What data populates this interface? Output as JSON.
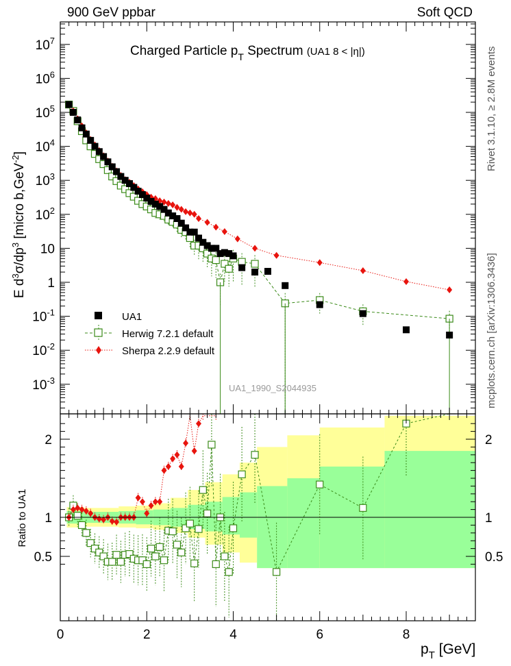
{
  "header": {
    "left": "900 GeV ppbar",
    "right": "Soft QCD"
  },
  "side": {
    "rivet": "Rivet 3.1.10, ≥ 2.8M events",
    "mcplots": "mcplots.cern.ch [arXiv:1306.3436]"
  },
  "chart_data": {
    "type": "scatter",
    "title": "Charged Particle p_T Spectrum  (UA1   8 < |η|)",
    "watermark": "UA1_1990_S2044935",
    "xlabel": "p_T [GeV]",
    "ylabel": "E d³σ/dp³ [micro b,GeV⁻²]",
    "ratio_ylabel": "Ratio to UA1",
    "xlim": [
      0,
      9.6
    ],
    "ylim": [
      0.0002,
      50000000
    ],
    "ratio_ylim": [
      0.35,
      2.3
    ],
    "yscale": "log",
    "xticks": [
      "0",
      "2",
      "4",
      "6",
      "8"
    ],
    "yticks": [
      "10⁻³",
      "10⁻²",
      "10⁻¹",
      "1",
      "10",
      "10²",
      "10³",
      "10⁴",
      "10⁵",
      "10⁶",
      "10⁷"
    ],
    "ratio_yticks": [
      "0.5",
      "1",
      "2"
    ],
    "legend_position": "bottom-left",
    "series": [
      {
        "name": "UA1",
        "color": "#000000",
        "marker": "filled-square",
        "x": [
          0.2,
          0.3,
          0.4,
          0.5,
          0.6,
          0.7,
          0.8,
          0.9,
          1.0,
          1.1,
          1.2,
          1.3,
          1.4,
          1.5,
          1.6,
          1.7,
          1.8,
          1.9,
          2.0,
          2.1,
          2.2,
          2.3,
          2.4,
          2.5,
          2.6,
          2.7,
          2.8,
          2.9,
          3.0,
          3.1,
          3.2,
          3.3,
          3.4,
          3.5,
          3.6,
          3.7,
          3.8,
          3.9,
          4.0,
          4.2,
          4.5,
          4.8,
          5.2,
          6.0,
          7.0,
          8.0,
          9.0
        ],
        "y": [
          170000,
          100000,
          60000,
          35000,
          23000,
          15000,
          10000,
          7000,
          5000,
          3500,
          2500,
          1800,
          1300,
          1000,
          800,
          620,
          480,
          380,
          300,
          240,
          200,
          170,
          140,
          110,
          90,
          75,
          55,
          40,
          30,
          30,
          20,
          15,
          12,
          10,
          10,
          7,
          7.5,
          7,
          6,
          2.7,
          2,
          2.1,
          0.8,
          0.22,
          0.12,
          0.04,
          0.028
        ]
      },
      {
        "name": "Herwig 7.2.1 default",
        "color": "#3a8a18",
        "marker": "open-square",
        "x": [
          0.2,
          0.3,
          0.4,
          0.5,
          0.6,
          0.7,
          0.8,
          0.9,
          1.0,
          1.1,
          1.2,
          1.3,
          1.4,
          1.5,
          1.6,
          1.7,
          1.8,
          1.9,
          2.0,
          2.1,
          2.2,
          2.3,
          2.4,
          2.5,
          2.6,
          2.7,
          2.8,
          2.9,
          3.0,
          3.1,
          3.2,
          3.3,
          3.4,
          3.5,
          3.6,
          3.7,
          3.8,
          3.9,
          4.0,
          4.2,
          4.5,
          5.2,
          6.0,
          7.0,
          9.0
        ],
        "y": [
          170000,
          110000,
          55000,
          28000,
          15000,
          10000,
          6000,
          4200,
          3000,
          2000,
          1300,
          950,
          700,
          550,
          420,
          330,
          250,
          200,
          170,
          140,
          110,
          100,
          90,
          70,
          60,
          50,
          35,
          30,
          20,
          12,
          12,
          10,
          7,
          5,
          4.5,
          1,
          3.5,
          2.5,
          5,
          4,
          3.5,
          0.24,
          0.3,
          0.14,
          0.085
        ],
        "yerr_low": [
          0.05,
          0.05,
          0.05,
          0.05,
          0.05,
          0.05,
          0.05,
          0.05,
          0.08,
          0.08,
          0.1,
          0.12,
          0.12,
          0.15,
          0.15,
          0.2,
          0.2,
          0.2,
          0.25,
          0.25,
          0.3,
          0.3,
          0.3,
          0.35,
          0.35,
          0.4,
          0.4,
          0.4,
          0.5,
          0.5,
          0.6,
          0.6,
          0.6,
          0.7,
          0.7,
          0.8,
          0.7,
          0.7,
          0.8,
          0.8,
          0.8,
          1.0,
          0.6,
          0.6,
          0.7
        ],
        "yerr_high": [
          0.05,
          0.05,
          0.05,
          0.05,
          0.05,
          0.05,
          0.05,
          0.05,
          0.08,
          0.08,
          0.1,
          0.12,
          0.12,
          0.15,
          0.15,
          0.2,
          0.2,
          0.2,
          0.25,
          0.25,
          0.3,
          0.3,
          0.3,
          0.35,
          0.35,
          0.4,
          0.4,
          0.4,
          0.5,
          0.5,
          0.6,
          0.6,
          0.6,
          0.7,
          0.7,
          0.8,
          0.7,
          0.7,
          0.8,
          0.8,
          0.8,
          1.0,
          0.6,
          0.6,
          0.7
        ]
      },
      {
        "name": "Sherpa 2.2.9 default",
        "color": "#e8140e",
        "marker": "filled-diamond",
        "x": [
          0.2,
          0.3,
          0.4,
          0.5,
          0.6,
          0.7,
          0.8,
          0.9,
          1.0,
          1.1,
          1.2,
          1.3,
          1.4,
          1.5,
          1.6,
          1.7,
          1.8,
          1.9,
          2.0,
          2.1,
          2.2,
          2.3,
          2.4,
          2.5,
          2.6,
          2.7,
          2.8,
          2.9,
          3.0,
          3.1,
          3.2,
          3.4,
          3.6,
          3.8,
          4.1,
          4.5,
          5.0,
          6.0,
          7.0,
          8.0,
          9.0
        ],
        "y": [
          170000,
          110000,
          65000,
          40000,
          25000,
          16000,
          11000,
          7500,
          5300,
          3700,
          2600,
          1900,
          1400,
          1050,
          880,
          700,
          560,
          460,
          380,
          320,
          290,
          250,
          230,
          210,
          190,
          160,
          140,
          120,
          110,
          100,
          75,
          58,
          42,
          31,
          19,
          10,
          6.2,
          3.8,
          2.2,
          1.05,
          0.6
        ],
        "yerr_low": [
          0,
          0,
          0,
          0,
          0,
          0,
          0,
          0,
          0,
          0,
          0,
          0,
          0,
          0,
          0,
          0,
          0,
          0,
          0,
          0,
          0,
          0,
          0,
          0,
          0,
          0,
          0,
          0,
          0,
          0,
          0,
          0,
          0,
          0,
          0,
          0,
          0,
          0,
          0,
          0,
          0
        ],
        "yerr_high": [
          0,
          0,
          0,
          0,
          0,
          0,
          0,
          0,
          0,
          0,
          0,
          0,
          0,
          0,
          0,
          0,
          0,
          0,
          0,
          0,
          0,
          0,
          0,
          0,
          0,
          0,
          0,
          0,
          0,
          0,
          0,
          0,
          0,
          0,
          0,
          0,
          0,
          0,
          0,
          0,
          0
        ]
      }
    ],
    "ratio": {
      "band_x": [
        0.15,
        0.55,
        0.95,
        1.35,
        1.75,
        2.15,
        2.55,
        2.95,
        3.35,
        3.75,
        4.15,
        4.55,
        5.25,
        6.0,
        7.5,
        9.6
      ],
      "band_inner": [
        [
          0.92,
          1.08
        ],
        [
          0.93,
          1.07
        ],
        [
          0.93,
          1.07
        ],
        [
          0.92,
          1.08
        ],
        [
          0.91,
          1.09
        ],
        [
          0.9,
          1.1
        ],
        [
          0.88,
          1.12
        ],
        [
          0.85,
          1.16
        ],
        [
          0.82,
          1.2
        ],
        [
          0.78,
          1.26
        ],
        [
          0.74,
          1.32
        ],
        [
          0.35,
          1.4
        ],
        [
          0.35,
          1.5
        ],
        [
          0.35,
          1.65
        ],
        [
          0.35,
          1.85
        ]
      ],
      "band_outer": [
        [
          0.87,
          1.13
        ],
        [
          0.88,
          1.12
        ],
        [
          0.88,
          1.12
        ],
        [
          0.87,
          1.14
        ],
        [
          0.86,
          1.15
        ],
        [
          0.84,
          1.18
        ],
        [
          0.8,
          1.25
        ],
        [
          0.74,
          1.35
        ],
        [
          0.65,
          1.45
        ],
        [
          0.55,
          1.55
        ],
        [
          0.42,
          1.7
        ],
        [
          0.35,
          1.9
        ],
        [
          0.35,
          2.05
        ],
        [
          0.35,
          2.15
        ],
        [
          0.35,
          2.3
        ]
      ],
      "herwig": {
        "x": [
          0.2,
          0.3,
          0.4,
          0.5,
          0.6,
          0.7,
          0.8,
          0.9,
          1.0,
          1.1,
          1.2,
          1.3,
          1.4,
          1.5,
          1.6,
          1.7,
          1.8,
          1.9,
          2.0,
          2.1,
          2.2,
          2.3,
          2.4,
          2.5,
          2.6,
          2.7,
          2.8,
          2.9,
          3.0,
          3.1,
          3.2,
          3.3,
          3.4,
          3.5,
          3.6,
          3.7,
          3.8,
          3.9,
          4.0,
          4.2,
          4.5,
          5.0,
          6.0,
          7.0,
          8.0,
          9.0
        ],
        "y": [
          1.0,
          1.15,
          1.02,
          0.9,
          0.8,
          0.67,
          0.6,
          0.55,
          0.5,
          0.43,
          0.43,
          0.52,
          0.43,
          0.52,
          0.53,
          0.47,
          0.45,
          0.45,
          0.4,
          0.6,
          0.5,
          0.62,
          0.45,
          0.83,
          0.82,
          0.65,
          0.55,
          0.86,
          0.92,
          0.41,
          0.85,
          1.35,
          1.05,
          1.93,
          0.4,
          1.0,
          0.5,
          0.3,
          0.86,
          1.55,
          1.8,
          0.3,
          1.42,
          1.12,
          2.2,
          3.0
        ]
      },
      "sherpa": {
        "x": [
          0.2,
          0.3,
          0.4,
          0.5,
          0.6,
          0.7,
          0.8,
          0.9,
          1.0,
          1.1,
          1.2,
          1.3,
          1.4,
          1.5,
          1.6,
          1.7,
          1.8,
          1.9,
          2.0,
          2.1,
          2.2,
          2.3,
          2.4,
          2.5,
          2.6,
          2.7,
          2.8,
          2.9,
          3.0,
          3.1,
          3.2,
          3.3,
          3.6
        ],
        "y": [
          1.0,
          1.1,
          1.12,
          1.1,
          1.08,
          1.05,
          1.0,
          0.98,
          0.97,
          1.0,
          0.95,
          0.94,
          1.0,
          1.0,
          1.0,
          1.0,
          1.25,
          1.2,
          1.05,
          1.15,
          1.2,
          1.2,
          1.6,
          1.65,
          1.75,
          1.8,
          1.65,
          1.95,
          2.3,
          1.85,
          2.2,
          2.3,
          2.3
        ]
      }
    }
  }
}
